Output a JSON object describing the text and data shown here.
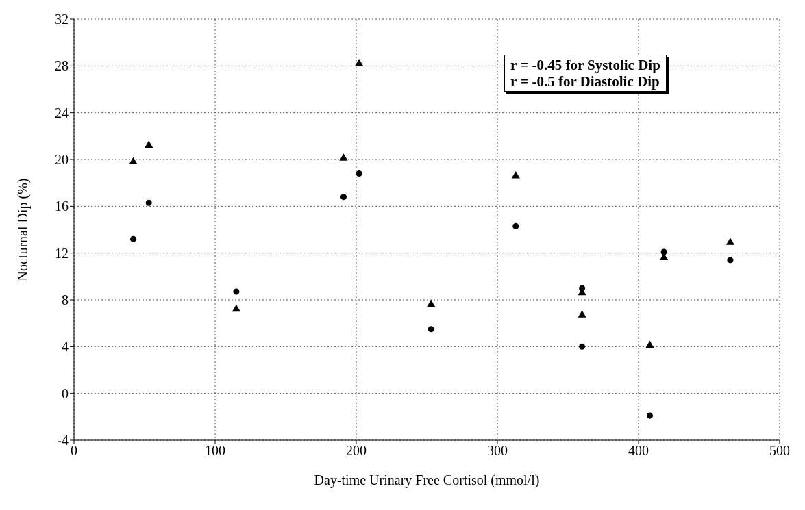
{
  "chart_data": {
    "type": "scatter",
    "xlabel": "Day-time Urinary Free Cortisol (mmol/l)",
    "ylabel": "Nocturnal Dip (%)",
    "xlim": [
      0,
      500
    ],
    "xticks": [
      0,
      100,
      200,
      300,
      400,
      500
    ],
    "ylim": [
      -4,
      32
    ],
    "yticks": [
      -4,
      0,
      4,
      8,
      12,
      16,
      20,
      24,
      28,
      32
    ],
    "grid": true,
    "annotations": [
      "r = -0.45 for Systolic Dip",
      "r = -0.5 for Diastolic Dip"
    ],
    "series": [
      {
        "color": "#000000",
        "marker": "triangle",
        "x": [
          42,
          53,
          115,
          191,
          202,
          253,
          313,
          360,
          360,
          408,
          418,
          465
        ],
        "values": [
          19.8,
          21.2,
          7.2,
          20.1,
          28.2,
          7.6,
          18.6,
          8.6,
          6.7,
          4.1,
          11.6,
          12.9
        ]
      },
      {
        "color": "#000000",
        "marker": "circle",
        "x": [
          42,
          53,
          115,
          191,
          202,
          253,
          313,
          360,
          360,
          408,
          418,
          465
        ],
        "values": [
          13.2,
          16.3,
          8.7,
          16.8,
          18.8,
          5.5,
          14.3,
          4.0,
          9.0,
          -1.9,
          12.1,
          11.4
        ]
      }
    ]
  }
}
